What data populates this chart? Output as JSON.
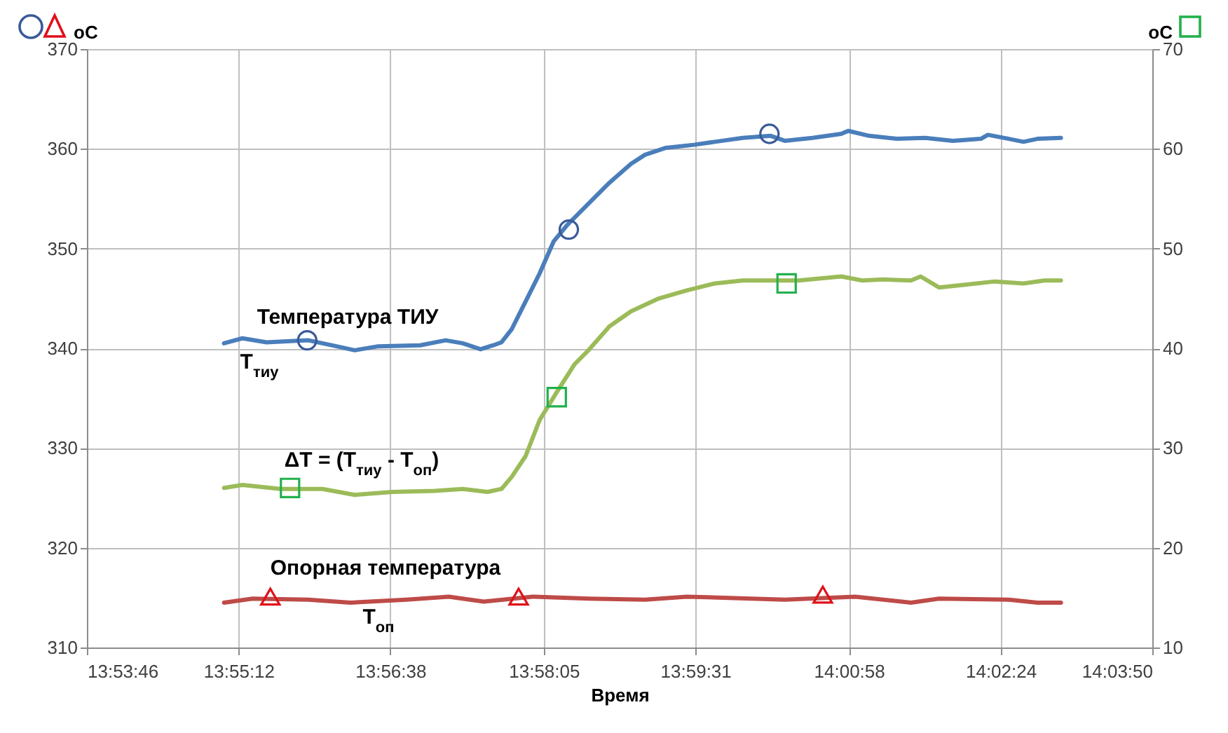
{
  "chart_data": {
    "type": "line",
    "xlabel": "Время",
    "ylabel": "oC",
    "y2label": "oC",
    "xlim": [
      13.89611,
      14.06389
    ],
    "xticks": [
      {
        "value": 13.89611,
        "label": "13:53:46"
      },
      {
        "value": 13.92,
        "label": "13:55:12"
      },
      {
        "value": 13.94389,
        "label": "13:56:38"
      },
      {
        "value": 13.96806,
        "label": "13:58:05"
      },
      {
        "value": 13.99194,
        "label": "13:59:31"
      },
      {
        "value": 14.01611,
        "label": "14:00:58"
      },
      {
        "value": 14.04,
        "label": "14:02:24"
      },
      {
        "value": 14.06389,
        "label": "14:03:50"
      }
    ],
    "ylim": [
      310,
      370
    ],
    "yticks": [
      310,
      320,
      330,
      340,
      350,
      360,
      370
    ],
    "y2lim": [
      10,
      70
    ],
    "y2ticks": [
      10,
      20,
      30,
      40,
      50,
      60,
      70
    ],
    "grid": true,
    "series": [
      {
        "color": "#4a7ebb",
        "x": [
          13.9177,
          13.9206,
          13.9244,
          13.931,
          13.9354,
          13.9383,
          13.942,
          13.9486,
          13.9526,
          13.9553,
          13.9581,
          13.9601,
          13.9614,
          13.963,
          13.9652,
          13.9674,
          13.9696,
          13.9718,
          13.9751,
          13.9784,
          13.9818,
          13.984,
          13.9873,
          13.9917,
          13.995,
          13.9994,
          14.0038,
          14.006,
          14.0104,
          14.0149,
          14.016,
          14.0193,
          14.0237,
          14.0281,
          14.0325,
          14.0369,
          14.038,
          14.0413,
          14.0436,
          14.0458,
          14.0495
        ],
        "values": [
          340.5,
          341.0,
          340.6,
          340.8,
          340.2,
          339.8,
          340.2,
          340.3,
          340.8,
          340.5,
          339.9,
          340.3,
          340.6,
          341.9,
          344.7,
          347.5,
          350.7,
          352.4,
          354.5,
          356.6,
          358.5,
          359.4,
          360.1,
          360.4,
          360.7,
          361.1,
          361.3,
          360.8,
          361.1,
          361.5,
          361.8,
          361.3,
          361.0,
          361.1,
          360.8,
          361.0,
          361.4,
          361.0,
          360.7,
          361.0,
          361.1
        ]
      },
      {
        "color": "#be4b48",
        "x": [
          13.9177,
          13.9222,
          13.931,
          13.9376,
          13.9464,
          13.9531,
          13.9586,
          13.9663,
          13.9751,
          13.984,
          13.9906,
          14.006,
          14.0171,
          14.0259,
          14.0303,
          14.0413,
          14.0458,
          14.0495
        ],
        "values": [
          314.5,
          314.9,
          314.8,
          314.5,
          314.8,
          315.1,
          314.6,
          315.1,
          314.9,
          314.8,
          315.1,
          314.8,
          315.1,
          314.5,
          314.9,
          314.8,
          314.5,
          314.5
        ]
      },
      {
        "color": "#9bbb59",
        "axis": "y2",
        "x": [
          13.9177,
          13.9206,
          13.9266,
          13.9332,
          13.9383,
          13.9442,
          13.9509,
          13.9553,
          13.9592,
          13.9614,
          13.963,
          13.9652,
          13.9674,
          13.9701,
          13.9729,
          13.9751,
          13.9784,
          13.9818,
          13.9862,
          13.9906,
          13.995,
          13.9994,
          14.0038,
          14.0082,
          14.0149,
          14.0182,
          14.0215,
          14.0259,
          14.0274,
          14.0303,
          14.0347,
          14.0391,
          14.0436,
          14.0469,
          14.0495
        ],
        "values": [
          26.0,
          26.3,
          25.9,
          25.9,
          25.3,
          25.6,
          25.7,
          25.9,
          25.6,
          25.9,
          27.1,
          29.2,
          32.8,
          35.6,
          38.4,
          39.8,
          42.2,
          43.7,
          45.0,
          45.8,
          46.5,
          46.8,
          46.8,
          46.8,
          47.2,
          46.8,
          46.9,
          46.8,
          47.2,
          46.1,
          46.4,
          46.7,
          46.5,
          46.8,
          46.8
        ]
      },
      {
        "type": "scatter",
        "marker": "circle",
        "color": "#3a5a99",
        "x": [
          13.9308,
          13.972,
          14.0036
        ],
        "values": [
          340.8,
          351.9,
          361.5
        ]
      },
      {
        "type": "scatter",
        "marker": "triangle",
        "color": "#e0101a",
        "x": [
          13.925,
          13.9641,
          14.012
        ],
        "values": [
          315.1,
          315.1,
          315.3
        ]
      },
      {
        "type": "scatter",
        "marker": "square",
        "color": "#22b14c",
        "axis": "y2",
        "x": [
          13.9281,
          13.9701,
          14.0063
        ],
        "values": [
          26.0,
          35.1,
          46.5
        ]
      }
    ],
    "annotations": [
      "Температура ТИУ",
      "T$_{тиу}$",
      "ΔT = (T$_{тиу}$ - T$_{оп}$)",
      "Опорная температура",
      "T$_{оп}$"
    ]
  }
}
